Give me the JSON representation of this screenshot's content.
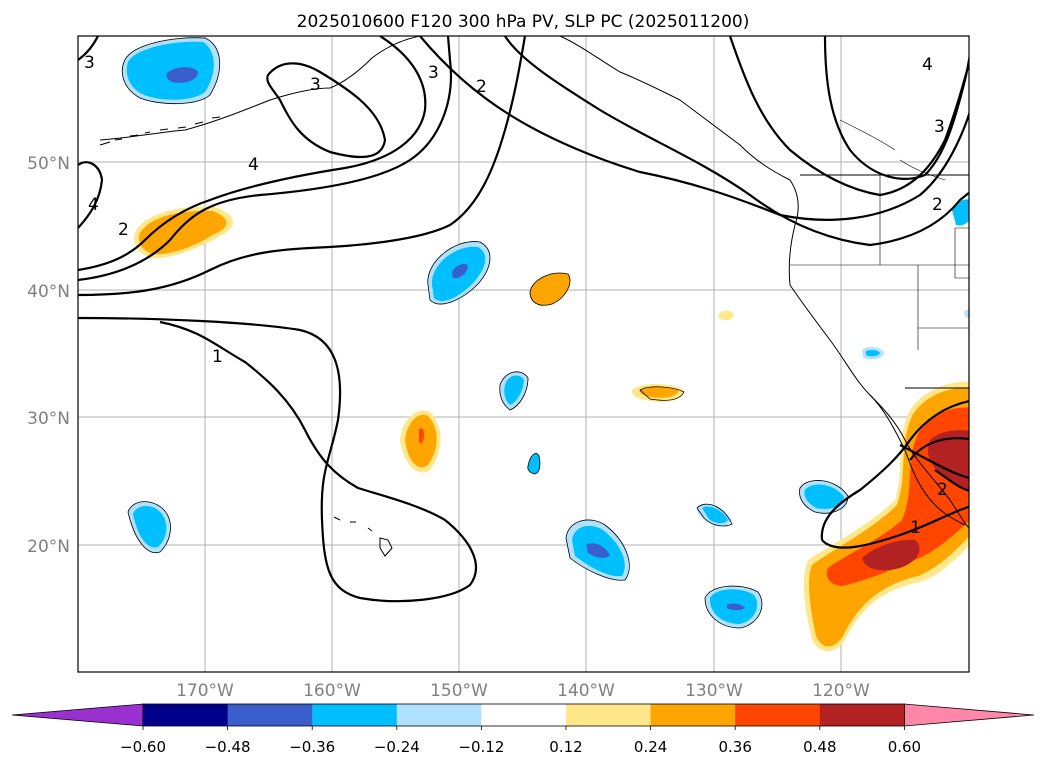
{
  "title": "2025010600 F120 300 hPa PV, SLP PC (2025011200)",
  "lat_labels": [
    "50°N",
    "40°N",
    "30°N",
    "20°N"
  ],
  "lon_labels": [
    "170°W",
    "160°W",
    "150°W",
    "140°W",
    "130°W",
    "120°W"
  ],
  "colorbar": {
    "ticks": [
      "−0.60",
      "−0.48",
      "−0.36",
      "−0.24",
      "−0.12",
      "0.12",
      "0.24",
      "0.36",
      "0.48",
      "0.60"
    ],
    "colors": [
      "#9b30d0",
      "#00008b",
      "#3a5fcd",
      "#00bfff",
      "#b0e2ff",
      "#ffffff",
      "#ffe78a",
      "#ffa500",
      "#ff4500",
      "#b22222",
      "#ff88aa"
    ]
  },
  "contour_labels": [
    "1",
    "1",
    "2",
    "2",
    "2",
    "3",
    "3",
    "3",
    "4",
    "4",
    "4",
    "3",
    "2"
  ],
  "colors": {
    "land_line": "#000000",
    "grid": "#b0b0b0",
    "label_gray": "#808080"
  }
}
